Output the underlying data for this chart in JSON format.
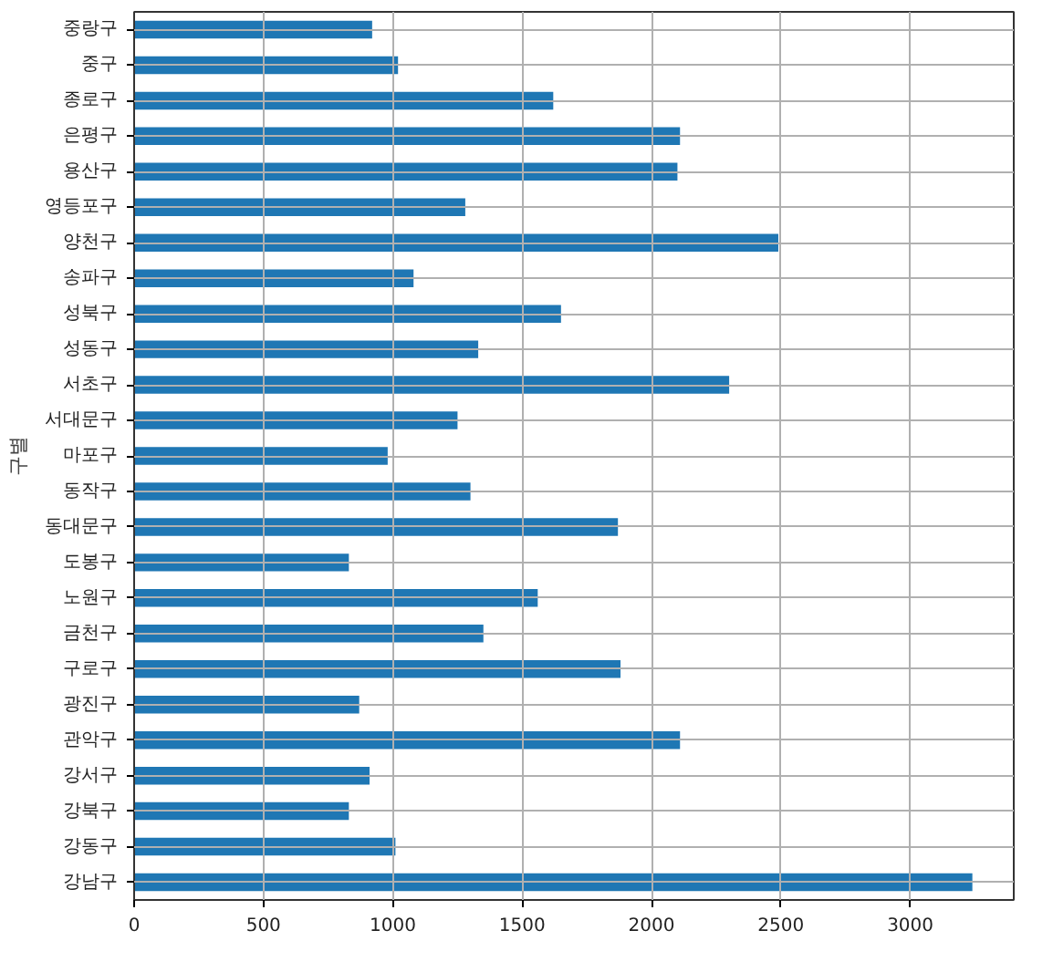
{
  "chart_data": {
    "type": "bar",
    "orientation": "horizontal",
    "ylabel": "구별",
    "categories": [
      "중랑구",
      "중구",
      "종로구",
      "은평구",
      "용산구",
      "영등포구",
      "양천구",
      "송파구",
      "성북구",
      "성동구",
      "서초구",
      "서대문구",
      "마포구",
      "동작구",
      "동대문구",
      "도봉구",
      "노원구",
      "금천구",
      "구로구",
      "광진구",
      "관악구",
      "강서구",
      "강북구",
      "강동구",
      "강남구"
    ],
    "values": [
      920,
      1020,
      1620,
      2110,
      2100,
      1280,
      2490,
      1080,
      1650,
      1330,
      2300,
      1250,
      980,
      1300,
      1870,
      830,
      1560,
      1350,
      1880,
      870,
      2110,
      910,
      830,
      1010,
      3240
    ],
    "color": "#1f77b4",
    "xlim": [
      0,
      3400
    ],
    "xticks": [
      0,
      500,
      1000,
      1500,
      2000,
      2500,
      3000
    ],
    "grid": true
  }
}
